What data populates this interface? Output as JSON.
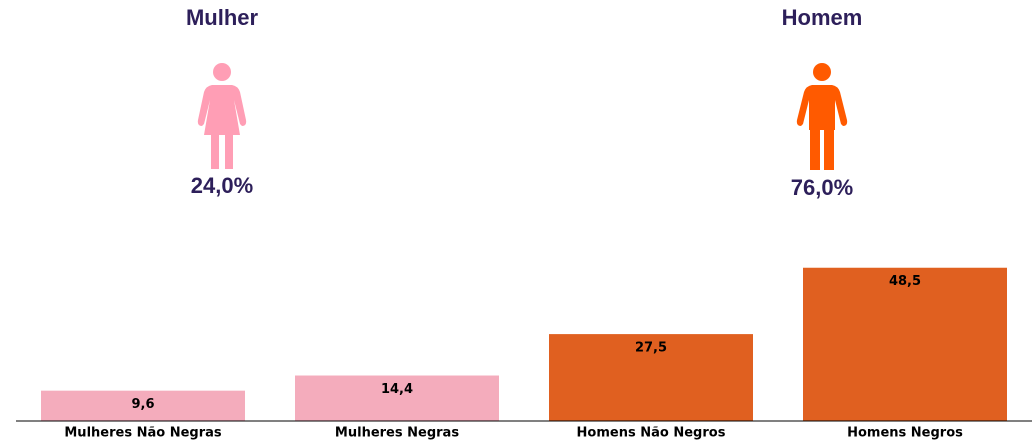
{
  "chart_data": {
    "type": "bar",
    "categories": [
      "Mulheres Não Negras",
      "Mulheres Negras",
      "Homens Não Negros",
      "Homens Negros"
    ],
    "values": [
      9.6,
      14.4,
      27.5,
      48.5
    ],
    "value_labels": [
      "9,6",
      "14,4",
      "27,5",
      "48,5"
    ],
    "colors": [
      "#f4acbc",
      "#f4acbc",
      "#e06020",
      "#e06020"
    ],
    "ylim": [
      0,
      50
    ],
    "annotations": [
      {
        "title": "Mulher",
        "text": "24,0%"
      },
      {
        "title": "Homem",
        "text": "76,0%"
      }
    ]
  }
}
